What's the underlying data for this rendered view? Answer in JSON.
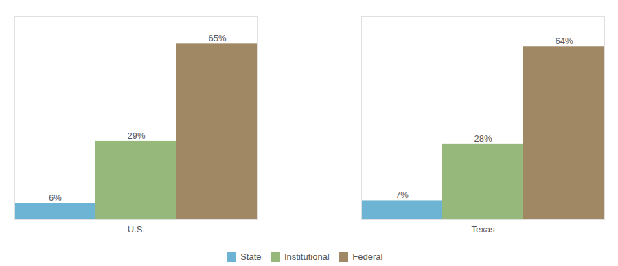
{
  "chart_data": {
    "type": "bar",
    "categories": [
      "U.S.",
      "Texas"
    ],
    "series": [
      {
        "name": "State",
        "color": "#6db3d4",
        "values": [
          6,
          7
        ],
        "value_labels": [
          "6%",
          "7%"
        ]
      },
      {
        "name": "Institutional",
        "color": "#96b87a",
        "values": [
          29,
          28
        ],
        "value_labels": [
          "29%",
          "28%"
        ]
      },
      {
        "name": "Federal",
        "color": "#a08865",
        "values": [
          65,
          64
        ],
        "value_labels": [
          "65%",
          "64%"
        ]
      }
    ],
    "ylim": [
      0,
      75
    ],
    "grid": false,
    "legend": "bottom",
    "data_labels": true,
    "tick_labels": "x"
  }
}
